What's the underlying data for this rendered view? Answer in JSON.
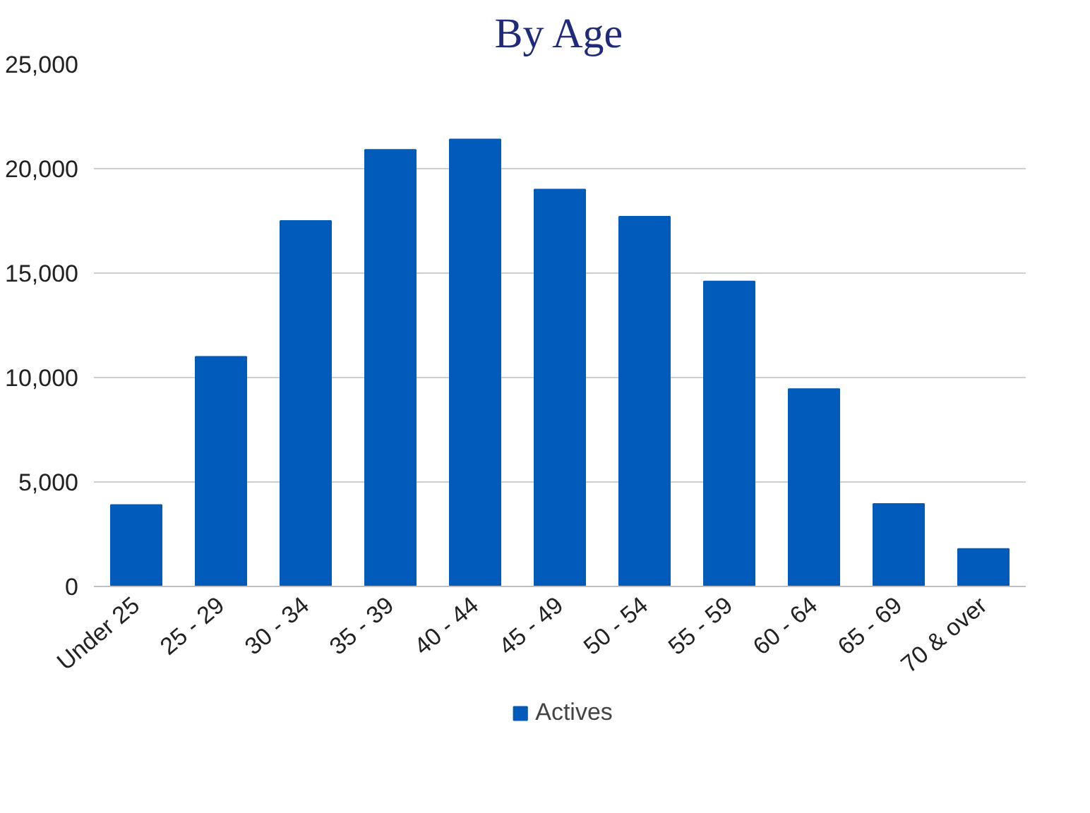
{
  "chart_data": {
    "type": "bar",
    "title": "By Age",
    "categories": [
      "Under 25",
      "25 - 29",
      "30 - 34",
      "35 - 39",
      "40 - 44",
      "45 - 49",
      "50 - 54",
      "55 - 59",
      "60 - 64",
      "65 - 69",
      "70 & over"
    ],
    "series": [
      {
        "name": "Actives",
        "color": "#005bbb",
        "values": [
          3900,
          11000,
          17500,
          20900,
          21400,
          19000,
          17700,
          14600,
          9450,
          3950,
          1800
        ]
      }
    ],
    "ylim": [
      0,
      25000
    ],
    "yticks": [
      {
        "value": 0,
        "label": "0"
      },
      {
        "value": 5000,
        "label": "5,000"
      },
      {
        "value": 10000,
        "label": "10,000"
      },
      {
        "value": 15000,
        "label": "15,000"
      },
      {
        "value": 20000,
        "label": "20,000"
      },
      {
        "value": 25000,
        "label": "25,000"
      }
    ],
    "grid": "y",
    "legend": "bottom"
  }
}
